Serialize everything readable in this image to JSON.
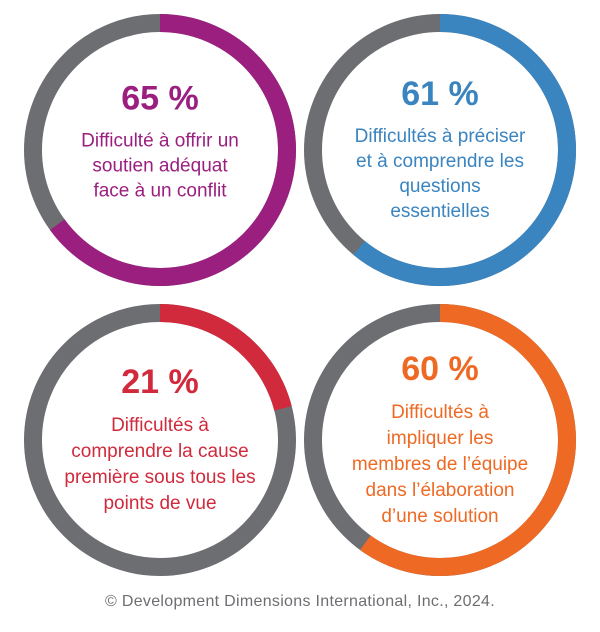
{
  "chart_data": {
    "type": "pie",
    "track_color": "#6d6e71",
    "charts": [
      {
        "value": 65,
        "value_label": "65 %",
        "color": "#9b1f7f",
        "label_lines": [
          "Difficulté à offrir un",
          "soutien adéquat",
          "face à un conflit"
        ]
      },
      {
        "value": 61,
        "value_label": "61 %",
        "color": "#3a84bf",
        "label_lines": [
          "Difficultés à préciser",
          "et à comprendre les",
          "questions",
          "essentielles"
        ]
      },
      {
        "value": 21,
        "value_label": "21 %",
        "color": "#d12a3c",
        "label_lines": [
          "Difficultés à",
          "comprendre la cause",
          "première sous tous les",
          "points de vue"
        ]
      },
      {
        "value": 60,
        "value_label": "60 %",
        "color": "#ee6a24",
        "label_lines": [
          "Difficultés à",
          "impliquer les",
          "membres de l’équipe",
          "dans l’élaboration",
          "d’une solution"
        ]
      }
    ]
  },
  "footer": {
    "copyright": "© Development Dimensions International, Inc., 2024."
  }
}
